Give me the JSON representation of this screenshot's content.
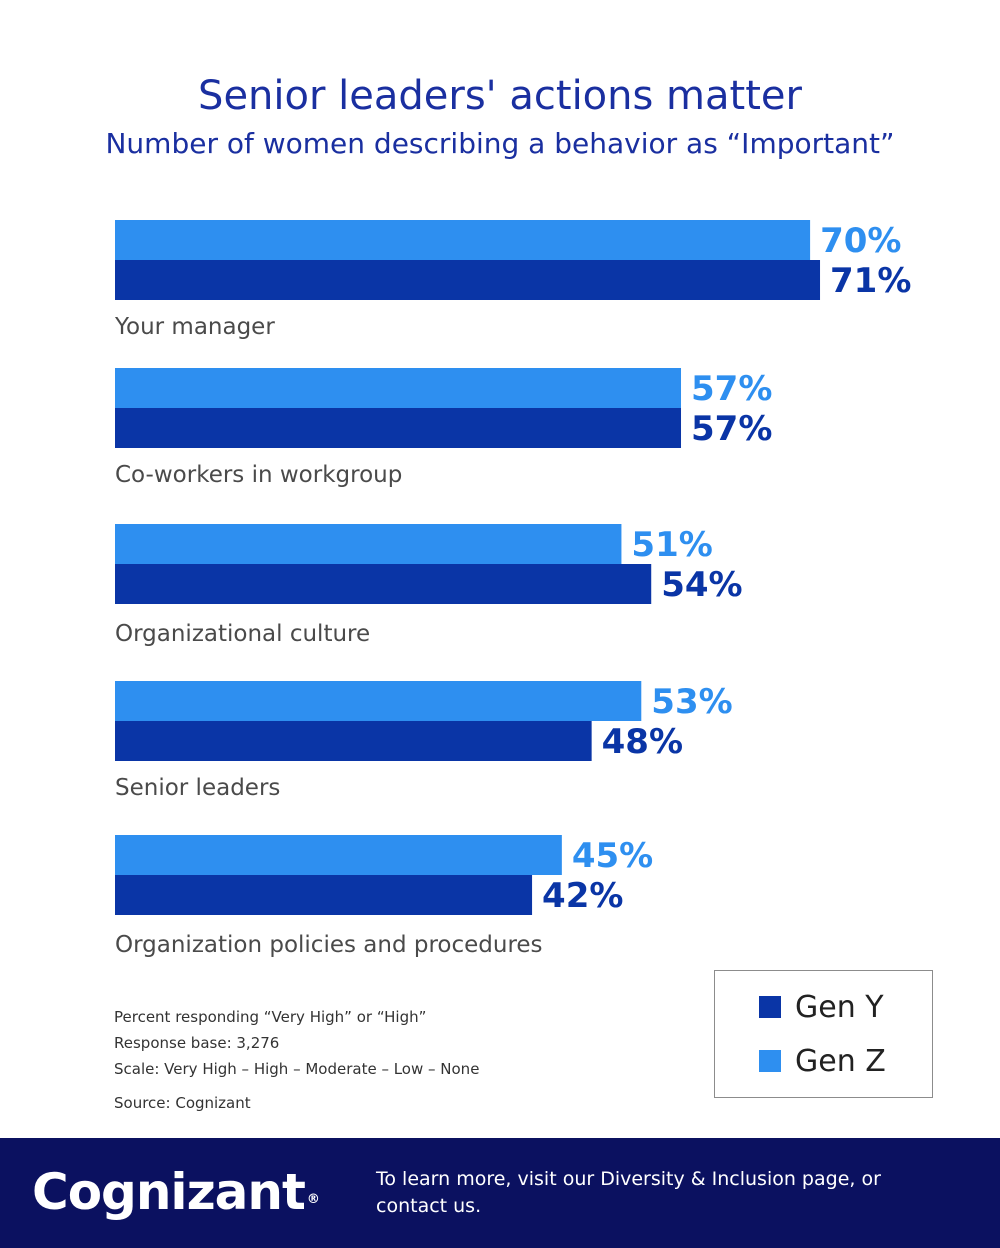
{
  "header": {
    "title": "Senior leaders' actions matter",
    "subtitle": "Number of women describing a behavior as “Important”"
  },
  "colors": {
    "gen_z": "#2e8ff0",
    "gen_y": "#0a35a6",
    "footer_bg": "#0b1160"
  },
  "chart_data": {
    "type": "bar",
    "orientation": "horizontal",
    "title": "Senior leaders' actions matter",
    "subtitle": "Number of women describing a behavior as “Important”",
    "categories": [
      "Your manager",
      "Co-workers in workgroup",
      "Organizational culture",
      "Senior leaders",
      "Organization policies and procedures"
    ],
    "series": [
      {
        "name": "Gen Z",
        "values": [
          70,
          57,
          51,
          53,
          45
        ],
        "labels": [
          "70%",
          "57%",
          "51%",
          "53%",
          "45%"
        ]
      },
      {
        "name": "Gen Y",
        "values": [
          71,
          57,
          54,
          48,
          42
        ],
        "labels": [
          "71%",
          "57%",
          "54%",
          "48%",
          "42%"
        ]
      }
    ],
    "unit": "%",
    "xlim": [
      0,
      100
    ],
    "grid": false,
    "legend_position": "bottom-right"
  },
  "notes": {
    "lines": [
      "Percent responding “Very High” or “High”",
      "Response base: 3,276",
      "Scale: Very High – High – Moderate – Low – None"
    ],
    "source": "Source: Cognizant"
  },
  "legend": {
    "items": [
      "Gen Y",
      "Gen Z"
    ]
  },
  "footer": {
    "brand": "Cognizant",
    "brand_mark": "®",
    "text": "To learn more, visit our Diversity & Inclusion page, or contact us."
  }
}
